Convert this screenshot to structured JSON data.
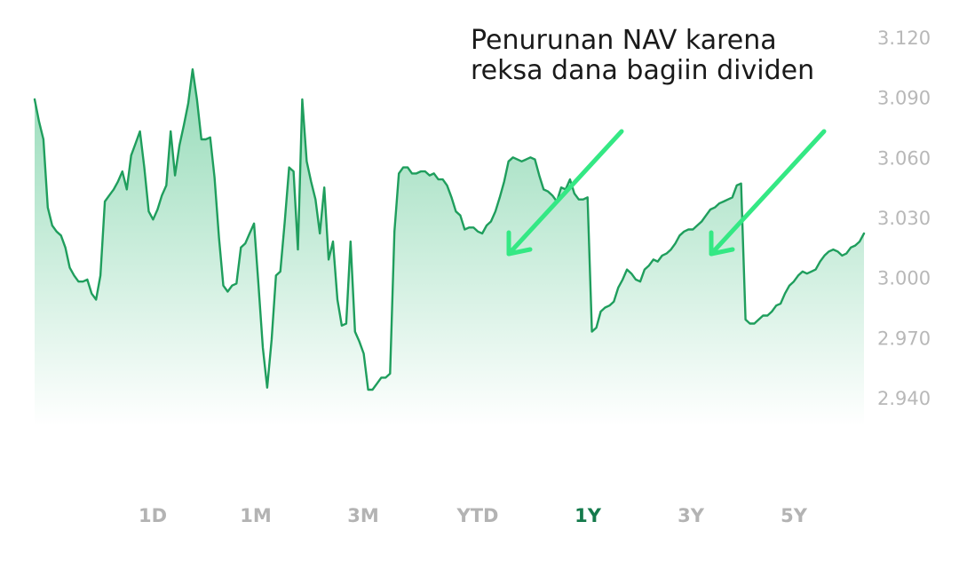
{
  "chart_data": {
    "type": "area",
    "y_ticks": [
      "3.120",
      "3.090",
      "3.060",
      "3.030",
      "3.000",
      "2.970",
      "2.940"
    ],
    "ylim": [
      2.926,
      3.126
    ],
    "grid": false,
    "annotation": {
      "lines": [
        "Penurunan NAV karena",
        "reksa dana bagiin dividen"
      ]
    },
    "series": [
      {
        "values": [
          3.089,
          3.078,
          3.069,
          3.035,
          3.026,
          3.023,
          3.021,
          3.015,
          3.005,
          3.001,
          2.998,
          2.998,
          2.999,
          2.992,
          2.989,
          3.001,
          3.038,
          3.041,
          3.044,
          3.048,
          3.053,
          3.044,
          3.061,
          3.067,
          3.073,
          3.055,
          3.033,
          3.029,
          3.034,
          3.041,
          3.046,
          3.073,
          3.051,
          3.066,
          3.076,
          3.087,
          3.104,
          3.089,
          3.069,
          3.069,
          3.07,
          3.05,
          3.02,
          2.996,
          2.993,
          2.996,
          2.997,
          3.015,
          3.017,
          3.022,
          3.027,
          2.997,
          2.965,
          2.945,
          2.969,
          3.001,
          3.003,
          3.028,
          3.055,
          3.053,
          3.014,
          3.089,
          3.058,
          3.048,
          3.039,
          3.022,
          3.045,
          3.009,
          3.018,
          2.989,
          2.976,
          2.977,
          3.018,
          2.973,
          2.968,
          2.962,
          2.944,
          2.944,
          2.947,
          2.95,
          2.95,
          2.952,
          3.023,
          3.052,
          3.055,
          3.055,
          3.052,
          3.052,
          3.053,
          3.053,
          3.051,
          3.052,
          3.049,
          3.049,
          3.046,
          3.04,
          3.033,
          3.031,
          3.024,
          3.025,
          3.025,
          3.023,
          3.022,
          3.026,
          3.028,
          3.033,
          3.04,
          3.048,
          3.058,
          3.06,
          3.059,
          3.058,
          3.059,
          3.06,
          3.059,
          3.051,
          3.044,
          3.043,
          3.041,
          3.038,
          3.045,
          3.044,
          3.049,
          3.042,
          3.039,
          3.039,
          3.04,
          2.973,
          2.975,
          2.983,
          2.985,
          2.986,
          2.988,
          2.995,
          2.999,
          3.004,
          3.002,
          2.999,
          2.998,
          3.004,
          3.006,
          3.009,
          3.008,
          3.011,
          3.012,
          3.014,
          3.017,
          3.021,
          3.023,
          3.024,
          3.024,
          3.026,
          3.028,
          3.031,
          3.034,
          3.035,
          3.037,
          3.038,
          3.039,
          3.04,
          3.046,
          3.047,
          2.979,
          2.977,
          2.977,
          2.979,
          2.981,
          2.981,
          2.983,
          2.986,
          2.987,
          2.992,
          2.996,
          2.998,
          3.001,
          3.003,
          3.002,
          3.003,
          3.004,
          3.008,
          3.011,
          3.013,
          3.014,
          3.013,
          3.011,
          3.012,
          3.015,
          3.016,
          3.018,
          3.022
        ],
        "color": "#1f9e5d"
      }
    ]
  },
  "tabs": [
    {
      "label": "1D",
      "active": false
    },
    {
      "label": "1M",
      "active": false
    },
    {
      "label": "3M",
      "active": false
    },
    {
      "label": "YTD",
      "active": false
    },
    {
      "label": "1Y",
      "active": true
    },
    {
      "label": "3Y",
      "active": false
    },
    {
      "label": "5Y",
      "active": false
    }
  ],
  "colors": {
    "line": "#1f9e5d",
    "area": "#3dbd7d",
    "arrow": "#34e884",
    "tab_active": "#157a4c",
    "tab_inactive": "#b3b3b3",
    "tick": "#b8b8b8"
  }
}
